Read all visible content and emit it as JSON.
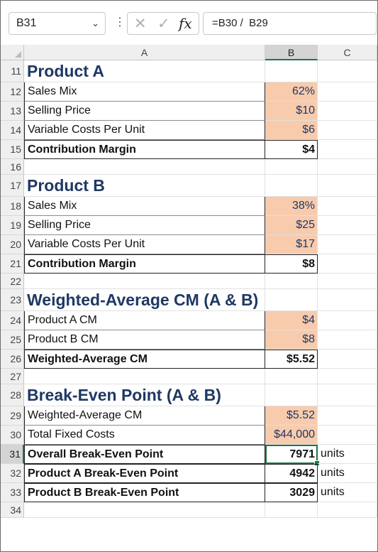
{
  "formula_bar": {
    "name_box": "B31",
    "formula": "=B30 /  B29",
    "fx_label": "fx"
  },
  "columns": [
    "A",
    "B",
    "C"
  ],
  "selected_cell": "B31",
  "rows": [
    {
      "n": "11",
      "a": "Product A",
      "b": "",
      "c": "",
      "style": "head"
    },
    {
      "n": "12",
      "a": "Sales Mix",
      "b": "62%",
      "c": "",
      "style": "input"
    },
    {
      "n": "13",
      "a": "Selling Price",
      "b": "$10",
      "c": "",
      "style": "input"
    },
    {
      "n": "14",
      "a": "Variable Costs Per Unit",
      "b": "$6",
      "c": "",
      "style": "input"
    },
    {
      "n": "15",
      "a": "Contribution Margin",
      "b": "$4",
      "c": "",
      "style": "total"
    },
    {
      "n": "16",
      "a": "",
      "b": "",
      "c": "",
      "style": "blank"
    },
    {
      "n": "17",
      "a": "Product B",
      "b": "",
      "c": "",
      "style": "head"
    },
    {
      "n": "18",
      "a": "Sales Mix",
      "b": "38%",
      "c": "",
      "style": "input"
    },
    {
      "n": "19",
      "a": "Selling Price",
      "b": "$25",
      "c": "",
      "style": "input"
    },
    {
      "n": "20",
      "a": "Variable Costs Per Unit",
      "b": "$17",
      "c": "",
      "style": "input"
    },
    {
      "n": "21",
      "a": "Contribution Margin",
      "b": "$8",
      "c": "",
      "style": "total"
    },
    {
      "n": "22",
      "a": "",
      "b": "",
      "c": "",
      "style": "blank"
    },
    {
      "n": "23",
      "a": "Weighted-Average CM (A & B)",
      "b": "",
      "c": "",
      "style": "head"
    },
    {
      "n": "24",
      "a": "Product A CM",
      "b": "$4",
      "c": "",
      "style": "input"
    },
    {
      "n": "25",
      "a": "Product B CM",
      "b": "$8",
      "c": "",
      "style": "input"
    },
    {
      "n": "26",
      "a": "Weighted-Average CM",
      "b": "$5.52",
      "c": "",
      "style": "total"
    },
    {
      "n": "27",
      "a": "",
      "b": "",
      "c": "",
      "style": "blank"
    },
    {
      "n": "28",
      "a": "Break-Even Point (A & B)",
      "b": "",
      "c": "",
      "style": "head"
    },
    {
      "n": "29",
      "a": "Weighted-Average CM",
      "b": "$5.52",
      "c": "",
      "style": "input"
    },
    {
      "n": "30",
      "a": "Total Fixed Costs",
      "b": "$44,000",
      "c": "",
      "style": "input"
    },
    {
      "n": "31",
      "a": "Overall Break-Even Point",
      "b": "7971",
      "c": "units",
      "style": "total"
    },
    {
      "n": "32",
      "a": "Product A Break-Even Point",
      "b": "4942",
      "c": "units",
      "style": "total"
    },
    {
      "n": "33",
      "a": "Product B Break-Even Point",
      "b": "3029",
      "c": "units",
      "style": "total"
    },
    {
      "n": "34",
      "a": "",
      "b": "",
      "c": "",
      "style": "blank"
    }
  ]
}
